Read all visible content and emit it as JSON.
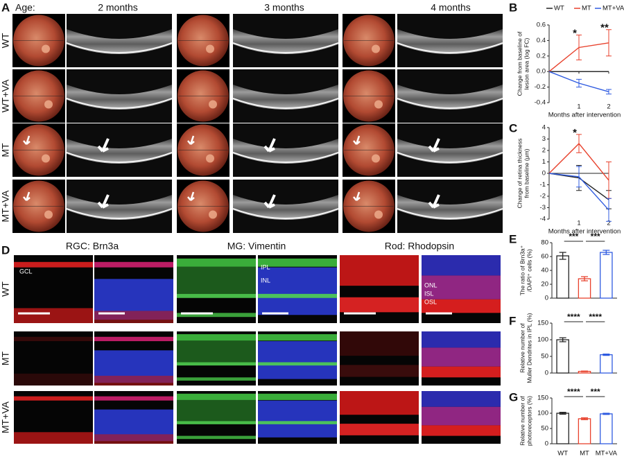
{
  "panel_a": {
    "letter": "A",
    "age_label": "Age:",
    "ages": [
      "2 months",
      "3 months",
      "4 months"
    ],
    "rows": [
      "WT",
      "WT+VA",
      "MT",
      "MT+VA"
    ]
  },
  "panel_d": {
    "letter": "D",
    "columns": [
      "RGC: Brn3a",
      "MG: Vimentin",
      "Rod: Rhodopsin"
    ],
    "rows": [
      "WT",
      "MT",
      "MT+VA"
    ],
    "layer_labels": [
      "GCL",
      "IPL",
      "INL",
      "ONL",
      "ISL",
      "OSL"
    ]
  },
  "chart_data": [
    {
      "type": "line",
      "letter": "B",
      "x": [
        0,
        1,
        2
      ],
      "xlim": [
        0,
        2
      ],
      "xticks": [
        1,
        2
      ],
      "xlabel": "Months after intervention",
      "ylabel": [
        "Change from baseline of",
        "lesion area (log FC)"
      ],
      "ylim": [
        -0.4,
        0.6
      ],
      "yticks": [
        -0.4,
        -0.2,
        {
          "value": 0,
          "label": "0.0"
        },
        0.2,
        0.4,
        0.6
      ],
      "annotations": [
        "*",
        "**"
      ],
      "legend": "top",
      "series": [
        {
          "name": "WT",
          "color": "#222222",
          "values": [
            0,
            0,
            0
          ]
        },
        {
          "name": "MT",
          "color": "#e8412c",
          "values": [
            0,
            0.31,
            0.37
          ],
          "errors": [
            null,
            0.16,
            0.17
          ]
        },
        {
          "name": "MT+VA",
          "color": "#2f5be0",
          "values": [
            0,
            -0.15,
            -0.26
          ],
          "errors": [
            null,
            0.05,
            0.03
          ]
        }
      ]
    },
    {
      "type": "line",
      "letter": "C",
      "x": [
        0,
        1,
        2
      ],
      "xlim": [
        0,
        2
      ],
      "xticks": [
        1,
        2
      ],
      "xlabel": "Months after intervention",
      "ylabel": [
        "Change of retina thickness",
        "from baseline (μm)"
      ],
      "ylim": [
        -4,
        4
      ],
      "yticks": [
        -4,
        -3,
        -2,
        -1,
        0,
        1,
        2,
        3,
        4
      ],
      "annotations": [
        "*"
      ],
      "series": [
        {
          "color": "#222222",
          "values": [
            0,
            -0.4,
            -2.3
          ],
          "errors": [
            null,
            1.1,
            0.8
          ]
        },
        {
          "color": "#e8412c",
          "values": [
            0,
            2.6,
            -0.6
          ],
          "errors": [
            null,
            0.8,
            1.6
          ]
        },
        {
          "color": "#2f5be0",
          "values": [
            0,
            -0.3,
            -3.2
          ],
          "errors": [
            null,
            0.9,
            1.0
          ]
        }
      ]
    },
    {
      "type": "bar",
      "letter": "E",
      "ylabel": [
        "The ratio of Brn3a⁺",
        "/DAPI⁺ cells (%)"
      ],
      "ylim": [
        0,
        80
      ],
      "yticks": [
        0,
        20,
        40,
        60,
        80
      ],
      "values": [
        61,
        28,
        66
      ],
      "errors": [
        5,
        3,
        3
      ],
      "colors": [
        "#222222",
        "#e8412c",
        "#2f5be0"
      ],
      "significance": [
        "***",
        "***"
      ]
    },
    {
      "type": "bar",
      "letter": "F",
      "ylabel": [
        "Relative number of",
        "Muller Dendrites in IPL (%)"
      ],
      "ylim": [
        0,
        150
      ],
      "yticks": [
        0,
        50,
        100,
        150
      ],
      "values": [
        100,
        5,
        55
      ],
      "errors": [
        6,
        1,
        2
      ],
      "colors": [
        "#222222",
        "#e8412c",
        "#2f5be0"
      ],
      "significance": [
        "****",
        "****"
      ]
    },
    {
      "type": "bar",
      "letter": "G",
      "ylabel": [
        "Relative number of",
        "photoreceptors (%)"
      ],
      "categories": [
        "WT",
        "MT",
        "MT+VA"
      ],
      "ylim": [
        0,
        150
      ],
      "yticks": [
        0,
        50,
        100,
        150
      ],
      "values": [
        100,
        82,
        98
      ],
      "errors": [
        3,
        3,
        2
      ],
      "colors": [
        "#222222",
        "#e8412c",
        "#2f5be0"
      ],
      "significance": [
        "****",
        "***"
      ]
    }
  ]
}
